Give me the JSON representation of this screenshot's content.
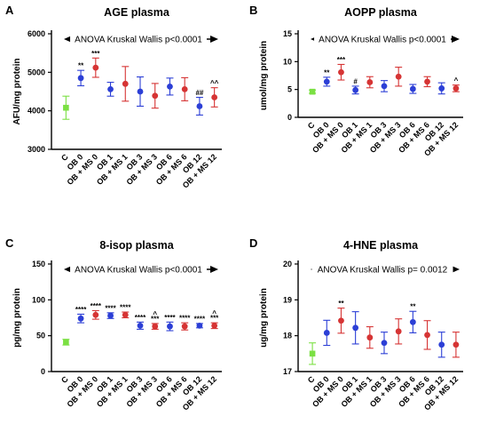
{
  "colors": {
    "C": "#7be043",
    "OB": "#2c3fd6",
    "OBMS": "#d63434"
  },
  "chart_data": [
    {
      "type": "scatter",
      "panel": "A",
      "title": "AGE plasma",
      "ylabel": "AFU/mg protein",
      "annotation": "ANOVA Kruskal Wallis p<0.0001",
      "ylim": [
        3000,
        6000
      ],
      "yticks": [
        3000,
        4000,
        5000,
        6000
      ],
      "categories": [
        "C",
        "OB 0",
        "OB + MS 0",
        "OB 1",
        "OB + MS 1",
        "OB 3",
        "OB + MS 3",
        "OB 6",
        "OB + MS 6",
        "OB 12",
        "OB + MS 12"
      ],
      "groups": [
        "C",
        "OB",
        "OBMS",
        "OB",
        "OBMS",
        "OB",
        "OBMS",
        "OB",
        "OBMS",
        "OB",
        "OBMS"
      ],
      "mean": [
        4080,
        4850,
        5120,
        4560,
        4700,
        4500,
        4390,
        4630,
        4560,
        4120,
        4350
      ],
      "err": [
        300,
        200,
        250,
        180,
        450,
        380,
        320,
        220,
        300,
        230,
        250
      ],
      "sig": [
        "",
        "**",
        "***",
        "",
        "",
        "",
        "",
        "",
        "",
        "##",
        "^^"
      ]
    },
    {
      "type": "scatter",
      "panel": "B",
      "title": "AOPP plasma",
      "ylabel": "umol/mg protein",
      "annotation": "ANOVA Kruskal Wallis p<0.0001",
      "ylim": [
        0,
        15
      ],
      "yticks": [
        0,
        5,
        10,
        15
      ],
      "categories": [
        "C",
        "OB 0",
        "OB + MS 0",
        "OB 1",
        "OB + MS 1",
        "OB 3",
        "OB + MS 3",
        "OB 6",
        "OB + MS 6",
        "OB 12",
        "OB + MS 12"
      ],
      "groups": [
        "C",
        "OB",
        "OBMS",
        "OB",
        "OBMS",
        "OB",
        "OBMS",
        "OB",
        "OBMS",
        "OB",
        "OBMS"
      ],
      "mean": [
        4.6,
        6.4,
        8.1,
        4.9,
        6.3,
        5.6,
        7.3,
        5.1,
        6.4,
        5.2,
        5.2
      ],
      "err": [
        0.3,
        0.8,
        1.4,
        0.7,
        1.0,
        1.0,
        1.7,
        0.8,
        0.9,
        1.0,
        0.6
      ],
      "sig": [
        "",
        "**",
        "***",
        "#",
        "",
        "",
        "",
        "",
        "",
        "",
        "^"
      ]
    },
    {
      "type": "scatter",
      "panel": "C",
      "title": "8-isop plasma",
      "ylabel": "pg/mg protein",
      "annotation": "ANOVA Kruskal Wallis p<0.0001",
      "ylim": [
        0,
        150
      ],
      "yticks": [
        0,
        50,
        100,
        150
      ],
      "categories": [
        "C",
        "OB 0",
        "OB + MS 0",
        "OB 1",
        "OB + MS 1",
        "OB 3",
        "OB + MS 3",
        "OB 6",
        "OB + MS 6",
        "OB 12",
        "OB + MS 12"
      ],
      "groups": [
        "C",
        "OB",
        "OBMS",
        "OB",
        "OBMS",
        "OB",
        "OBMS",
        "OB",
        "OBMS",
        "OB",
        "OBMS"
      ],
      "mean": [
        41,
        74,
        79,
        78,
        79,
        64,
        63,
        63,
        63,
        64,
        64
      ],
      "err": [
        4,
        6,
        6,
        4,
        4,
        5,
        4,
        6,
        5,
        3,
        4
      ],
      "sig": [
        "",
        "****",
        "****",
        "****",
        "****",
        "****",
        "***",
        "****",
        "****",
        "****",
        "***"
      ],
      "sig2": [
        "",
        "",
        "",
        "",
        "",
        "",
        "^",
        "",
        "",
        "",
        "^"
      ]
    },
    {
      "type": "scatter",
      "panel": "D",
      "title": "4-HNE plasma",
      "ylabel": "ug/mg protein",
      "annotation": "ANOVA Kruskal Wallis p= 0.0012",
      "ylim": [
        17,
        20
      ],
      "yticks": [
        17,
        18,
        19,
        20
      ],
      "categories": [
        "C",
        "OB 0",
        "OB + MS 0",
        "OB 1",
        "OB + MS 1",
        "OB 3",
        "OB + MS 3",
        "OB 6",
        "OB + MS 6",
        "OB 12",
        "OB + MS 12"
      ],
      "groups": [
        "C",
        "OB",
        "OBMS",
        "OB",
        "OBMS",
        "OB",
        "OBMS",
        "OB",
        "OBMS",
        "OB",
        "OBMS"
      ],
      "mean": [
        17.5,
        18.08,
        18.42,
        18.22,
        17.95,
        17.8,
        18.12,
        18.38,
        18.02,
        17.75,
        17.75
      ],
      "err": [
        0.3,
        0.35,
        0.35,
        0.45,
        0.3,
        0.3,
        0.35,
        0.3,
        0.4,
        0.35,
        0.35
      ],
      "sig": [
        "",
        "",
        "**",
        "",
        "",
        "",
        "",
        "**",
        "",
        "",
        ""
      ]
    }
  ]
}
